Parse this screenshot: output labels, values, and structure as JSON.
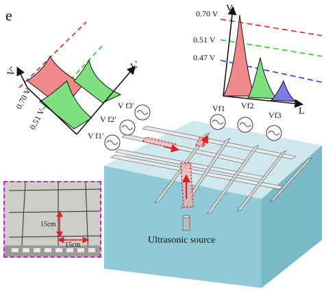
{
  "panel_label": "e",
  "left_plot": {
    "y_axis_label": "V′",
    "x_axis_label": "L′",
    "levels": [
      "0.70 V",
      "0.51 V"
    ],
    "sensors": [
      "V f3′",
      "V f2′",
      "V f1′"
    ]
  },
  "right_plot": {
    "y_axis_label": "V",
    "x_axis_label": "L",
    "levels": [
      "0.70 V",
      "0.51 V",
      "0.47 V"
    ],
    "sensors": [
      "Vf1",
      "Vf2",
      "Vf3"
    ]
  },
  "photo": {
    "dim_vertical": "15cm",
    "dim_horizontal": "15cm"
  },
  "source_label": "Ultrasonic source",
  "colors": {
    "level_high": "#e02020",
    "level_mid": "#22cc22",
    "level_low": "#1a3fd0",
    "peak_red": "#f08a8a",
    "peak_green": "#7ee07e",
    "peak_blue": "#7a7ae8",
    "water_top": "#cfe8ee",
    "water_front": "#8fcad6",
    "water_side": "#7ab9c6",
    "photo_border": "#d11ad1",
    "highlight": "#e03030"
  }
}
